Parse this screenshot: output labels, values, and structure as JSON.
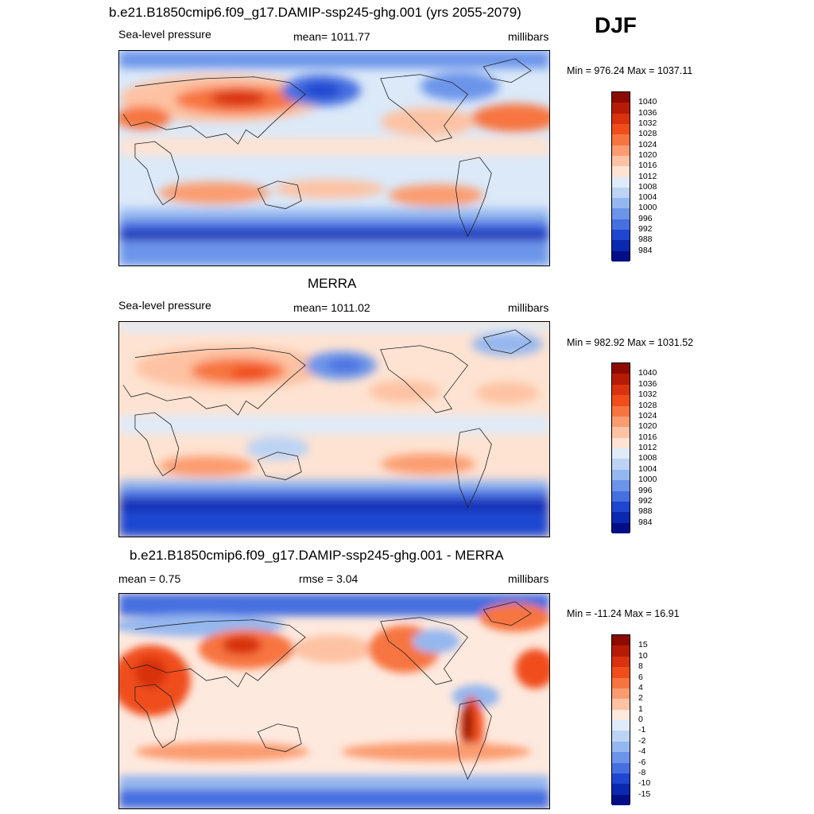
{
  "season": "DJF",
  "panels": [
    {
      "title": "b.e21.B1850cmip6.f09_g17.DAMIP-ssp245-ghg.001 (yrs 2055-2079)",
      "left": "Sea-level pressure",
      "center": "mean= 1011.77",
      "right": "millibars",
      "minmax": "Min = 976.24 Max = 1037.11"
    },
    {
      "title": "MERRA",
      "left": "Sea-level pressure",
      "center": "mean= 1011.02",
      "right": "millibars",
      "minmax": "Min = 982.92 Max = 1031.52"
    },
    {
      "title": "b.e21.B1850cmip6.f09_g17.DAMIP-ssp245-ghg.001 - MERRA",
      "left": "mean =   0.75",
      "center": "rmse =   3.04",
      "right": "millibars",
      "minmax": "Min = -11.24 Max =  16.91"
    }
  ],
  "colorbars": {
    "abs": {
      "labels": [
        "1040",
        "1036",
        "1032",
        "1028",
        "1024",
        "1020",
        "1016",
        "1012",
        "1008",
        "1004",
        "1000",
        "996",
        "992",
        "988",
        "984"
      ],
      "colors": [
        "#8c0a00",
        "#b51c06",
        "#d8320e",
        "#f04d1c",
        "#f7743f",
        "#fb9b70",
        "#fdc2a3",
        "#fee3d2",
        "#deebf8",
        "#bcd3f4",
        "#95b7ef",
        "#6c94ea",
        "#4670e0",
        "#1f46d0",
        "#0b28b0",
        "#000f85"
      ]
    },
    "diff": {
      "labels": [
        "15",
        "10",
        "8",
        "6",
        "4",
        "2",
        "1",
        "0",
        "-1",
        "-2",
        "-4",
        "-6",
        "-8",
        "-10",
        "-15"
      ],
      "colors": [
        "#8c0a00",
        "#b51c06",
        "#d8320e",
        "#f04d1c",
        "#f7743f",
        "#fb9b70",
        "#fdc2a3",
        "#fee9de",
        "#deebf8",
        "#bcd3f4",
        "#95b7ef",
        "#6c94ea",
        "#4670e0",
        "#1f46d0",
        "#0b28b0",
        "#000f85"
      ]
    }
  }
}
